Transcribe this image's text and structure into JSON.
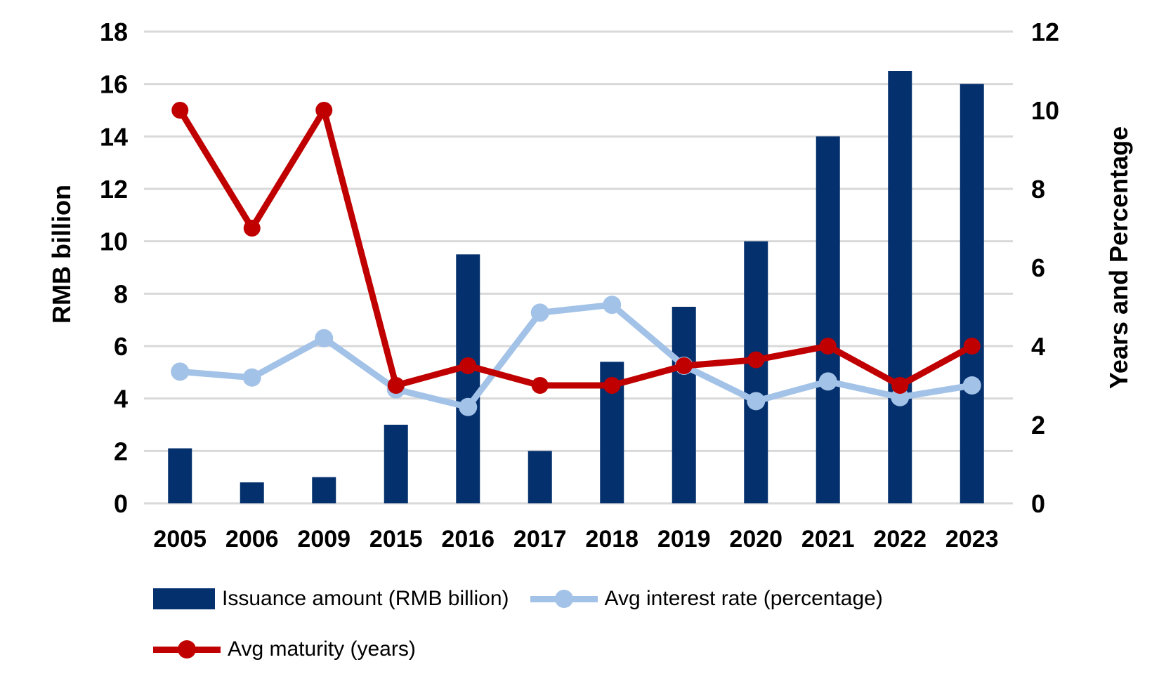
{
  "colors": {
    "bar": "#04306e",
    "interest_line": "#a3c2e7",
    "maturity_line": "#c00000",
    "gridline": "#d9d9d9",
    "text": "#000000",
    "background": "#ffffff"
  },
  "chart_data": {
    "type": "bar",
    "subtype": "combo-bar-line-dual-axis",
    "categories": [
      "2005",
      "2006",
      "2009",
      "2015",
      "2016",
      "2017",
      "2018",
      "2019",
      "2020",
      "2021",
      "2022",
      "2023"
    ],
    "series": [
      {
        "name": "Issuance amount (RMB billion)",
        "type": "bar",
        "axis": "left",
        "color_key": "bar",
        "values": [
          2.1,
          0.8,
          1.0,
          3.0,
          9.5,
          2.0,
          5.4,
          7.5,
          10.0,
          14.0,
          16.5,
          16.0
        ]
      },
      {
        "name": "Avg interest rate (percentage)",
        "type": "line",
        "axis": "right",
        "color_key": "interest_line",
        "values": [
          3.35,
          3.2,
          4.2,
          2.9,
          2.45,
          4.85,
          5.05,
          3.5,
          2.6,
          3.1,
          2.7,
          3.0
        ]
      },
      {
        "name": "Avg maturity (years)",
        "type": "line",
        "axis": "right",
        "color_key": "maturity_line",
        "values": [
          10,
          7,
          10,
          3,
          3.5,
          3,
          3,
          3.5,
          3.65,
          4,
          3,
          4
        ]
      }
    ],
    "left_axis": {
      "title": "RMB billion",
      "ticks": [
        0,
        2,
        4,
        6,
        8,
        10,
        12,
        14,
        16,
        18
      ],
      "range": [
        0,
        18
      ]
    },
    "right_axis": {
      "title": "Years and Percentage",
      "ticks": [
        0,
        2,
        4,
        6,
        8,
        10,
        12
      ],
      "range": [
        0,
        12
      ]
    },
    "grid": true,
    "legend_position": "bottom-left"
  }
}
